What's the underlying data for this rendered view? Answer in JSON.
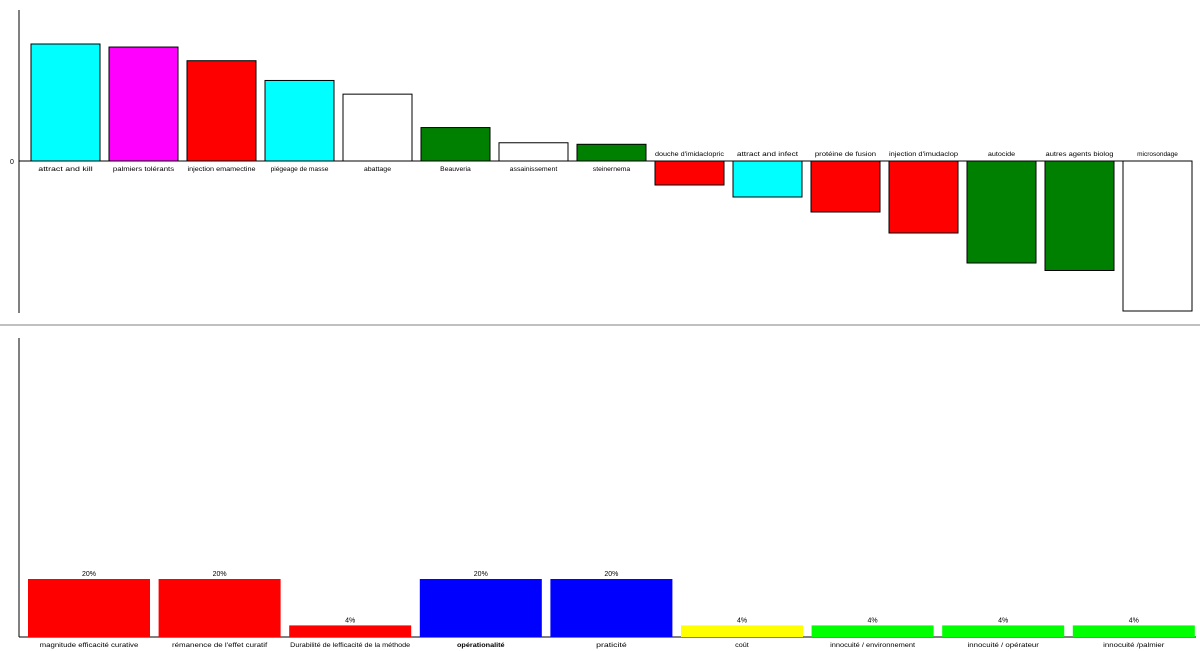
{
  "chart_data": [
    {
      "type": "bar",
      "title": "",
      "xlabel": "",
      "ylabel": "",
      "zero_tick_label": "0",
      "ylim": [
        -1.0,
        0.77
      ],
      "grid": false,
      "categories": [
        "attract and kill",
        "palmiers tolérants",
        "injection emamectine",
        "piégeage de masse",
        "abattage",
        "Beauveria",
        "assainissement",
        "steinernema",
        "douche d'imidaclopric",
        "attract and infect",
        "protéine de fusion",
        "injection d'imudaclop",
        "autocide",
        "autres agents biolog",
        "microsondage"
      ],
      "values": [
        0.77,
        0.75,
        0.66,
        0.53,
        0.44,
        0.22,
        0.12,
        0.11,
        -0.16,
        -0.24,
        -0.34,
        -0.48,
        -0.68,
        -0.73,
        -1.0
      ],
      "colors": [
        "#00FFFF",
        "#FF00FF",
        "#FF0000",
        "#00FFFF",
        "#FFFFFF",
        "#008000",
        "#FFFFFF",
        "#008000",
        "#FF0000",
        "#00FFFF",
        "#FF0000",
        "#FF0000",
        "#008000",
        "#008000",
        "#FFFFFF"
      ]
    },
    {
      "type": "bar",
      "title": "",
      "xlabel": "",
      "ylabel": "",
      "ylim": [
        0,
        100
      ],
      "grid": false,
      "categories": [
        "magnitude efficacité curative",
        "rémanence de l'effet curatif",
        "Durabilité de lefficacité de la méthode",
        "opérationalité",
        "praticité",
        "coût",
        "innocuité / environnement",
        "innocuité / opérateur",
        "innocuité /palmier"
      ],
      "values": [
        20,
        20,
        4,
        20,
        20,
        4,
        4,
        4,
        4
      ],
      "value_labels": [
        "20%",
        "20%",
        "4%",
        "20%",
        "20%",
        "4%",
        "4%",
        "4%",
        "4%"
      ],
      "colors": [
        "#FF0000",
        "#FF0000",
        "#FF0000",
        "#0000FF",
        "#0000FF",
        "#FFFF00",
        "#00FF00",
        "#00FF00",
        "#00FF00"
      ],
      "bold_categories": [
        "opérationalité"
      ]
    }
  ]
}
